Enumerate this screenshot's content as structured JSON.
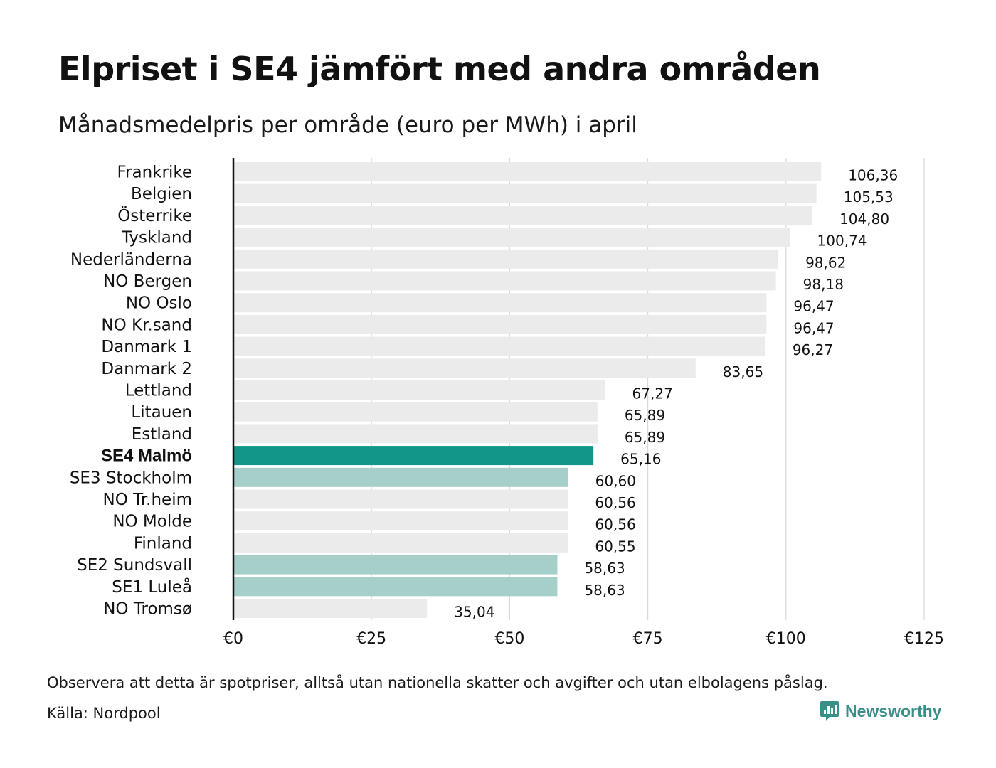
{
  "title": "Elpriset i SE4 jämfört med andra områden",
  "subtitle": "Månadsmedelpris per område (euro per MWh) i april",
  "note": "Observera att detta är spotpriser, alltså utan nationella skatter och avgifter och utan elbolagens påslag.",
  "source": "Källa: Nordpool",
  "logo": {
    "text": "Newsworthy",
    "icon": "newsworthy-logo-icon",
    "color": "#3a8f88"
  },
  "colors": {
    "default": "#ebebeb",
    "highlight": "#12968a",
    "swedish": "#a6cfc9",
    "grid": "#d9d9d9",
    "axis": "#111111"
  },
  "chart_data": {
    "type": "bar",
    "orientation": "horizontal",
    "categories": [
      "Frankrike",
      "Belgien",
      "Österrike",
      "Tyskland",
      "Nederländerna",
      "NO Bergen",
      "NO Oslo",
      "NO Kr.sand",
      "Danmark 1",
      "Danmark 2",
      "Lettland",
      "Litauen",
      "Estland",
      "SE4 Malmö",
      "SE3 Stockholm",
      "NO Tr.heim",
      "NO Molde",
      "Finland",
      "SE2 Sundsvall",
      "SE1 Luleå",
      "NO Tromsø"
    ],
    "values": [
      106.36,
      105.53,
      104.8,
      100.74,
      98.62,
      98.18,
      96.47,
      96.47,
      96.27,
      83.65,
      67.27,
      65.89,
      65.89,
      65.16,
      60.6,
      60.56,
      60.56,
      60.55,
      58.63,
      58.63,
      35.04
    ],
    "value_labels": [
      "106,36",
      "105,53",
      "104,80",
      "100,74",
      "98,62",
      "98,18",
      "96,47",
      "96,47",
      "96,27",
      "83,65",
      "67,27",
      "65,89",
      "65,89",
      "65,16",
      "60,60",
      "60,56",
      "60,56",
      "60,55",
      "58,63",
      "58,63",
      "35,04"
    ],
    "groups": [
      "default",
      "default",
      "default",
      "default",
      "default",
      "default",
      "default",
      "default",
      "default",
      "default",
      "default",
      "default",
      "default",
      "highlight",
      "swedish",
      "default",
      "default",
      "default",
      "swedish",
      "swedish",
      "default"
    ],
    "xlim": [
      0,
      125
    ],
    "xticks": [
      0,
      25,
      50,
      75,
      100,
      125
    ],
    "xtick_labels": [
      "€0",
      "€25",
      "€50",
      "€75",
      "€100",
      "€125"
    ],
    "grid": true,
    "legend": "none"
  }
}
